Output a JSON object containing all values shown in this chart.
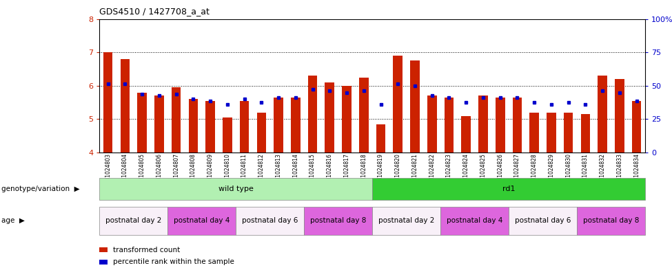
{
  "title": "GDS4510 / 1427708_a_at",
  "samples": [
    "GSM1024803",
    "GSM1024804",
    "GSM1024805",
    "GSM1024806",
    "GSM1024807",
    "GSM1024808",
    "GSM1024809",
    "GSM1024810",
    "GSM1024811",
    "GSM1024812",
    "GSM1024813",
    "GSM1024814",
    "GSM1024815",
    "GSM1024816",
    "GSM1024817",
    "GSM1024818",
    "GSM1024819",
    "GSM1024820",
    "GSM1024821",
    "GSM1024822",
    "GSM1024823",
    "GSM1024824",
    "GSM1024825",
    "GSM1024826",
    "GSM1024827",
    "GSM1024828",
    "GSM1024829",
    "GSM1024830",
    "GSM1024831",
    "GSM1024832",
    "GSM1024833",
    "GSM1024834"
  ],
  "red_values": [
    7.0,
    6.8,
    5.8,
    5.7,
    5.95,
    5.6,
    5.55,
    5.05,
    5.55,
    5.2,
    5.65,
    5.65,
    6.3,
    6.1,
    6.0,
    6.25,
    4.85,
    6.9,
    6.75,
    5.7,
    5.65,
    5.1,
    5.7,
    5.65,
    5.65,
    5.2,
    5.2,
    5.2,
    5.15,
    6.3,
    6.2,
    5.55
  ],
  "blue_values": [
    6.05,
    6.05,
    5.75,
    5.7,
    5.75,
    5.6,
    5.55,
    5.45,
    5.6,
    5.5,
    5.65,
    5.65,
    5.9,
    5.85,
    5.8,
    5.85,
    5.45,
    6.05,
    6.0,
    5.7,
    5.65,
    5.5,
    5.65,
    5.65,
    5.65,
    5.5,
    5.45,
    5.5,
    5.45,
    5.85,
    5.8,
    5.55
  ],
  "ymin": 4.0,
  "ymax": 8.0,
  "yticks": [
    4,
    5,
    6,
    7,
    8
  ],
  "right_yticks": [
    0,
    25,
    50,
    75,
    100
  ],
  "right_yticklabels": [
    "0",
    "25",
    "50",
    "75",
    "100%"
  ],
  "genotype_groups": [
    {
      "label": "wild type",
      "start": 0,
      "end": 16,
      "color": "#b2f0b2"
    },
    {
      "label": "rd1",
      "start": 16,
      "end": 32,
      "color": "#33cc33"
    }
  ],
  "age_groups": [
    {
      "label": "postnatal day 2",
      "start": 0,
      "end": 4,
      "color": "#f8f0f8"
    },
    {
      "label": "postnatal day 4",
      "start": 4,
      "end": 8,
      "color": "#dd66dd"
    },
    {
      "label": "postnatal day 6",
      "start": 8,
      "end": 12,
      "color": "#f8f0f8"
    },
    {
      "label": "postnatal day 8",
      "start": 12,
      "end": 16,
      "color": "#dd66dd"
    },
    {
      "label": "postnatal day 2",
      "start": 16,
      "end": 20,
      "color": "#f8f0f8"
    },
    {
      "label": "postnatal day 4",
      "start": 20,
      "end": 24,
      "color": "#dd66dd"
    },
    {
      "label": "postnatal day 6",
      "start": 24,
      "end": 28,
      "color": "#f8f0f8"
    },
    {
      "label": "postnatal day 8",
      "start": 28,
      "end": 32,
      "color": "#dd66dd"
    }
  ],
  "bar_color": "#cc2200",
  "dot_color": "#0000cc",
  "grid_color": "#000000",
  "bg_color": "#ffffff",
  "label_color_red": "#cc2200",
  "label_color_blue": "#0000cc",
  "legend_items": [
    {
      "color": "#cc2200",
      "label": "transformed count"
    },
    {
      "color": "#0000cc",
      "label": "percentile rank within the sample"
    }
  ]
}
